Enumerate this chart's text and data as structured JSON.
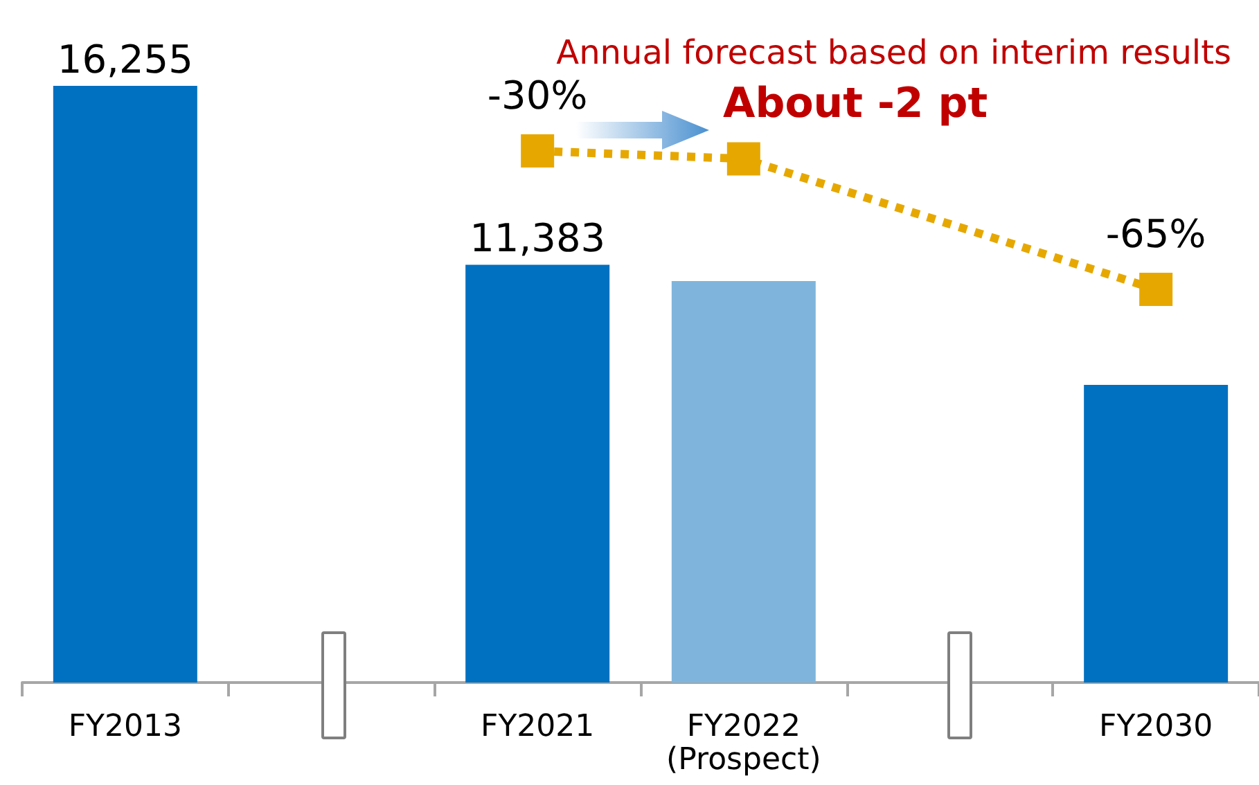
{
  "chart_data": {
    "type": "bar",
    "categories": [
      "FY2013",
      null,
      "FY2021",
      "FY2022\n(Prospect)",
      null,
      "FY2030"
    ],
    "series": [
      {
        "values": [
          16255,
          null,
          11383,
          10940,
          null,
          8110
        ],
        "colors": [
          "#0070c0",
          "#0070c0",
          "#0070c0",
          "#7fb5dc",
          "#0070c0",
          "#0070c0"
        ],
        "value_labels": [
          "16,255",
          null,
          "11,383",
          null,
          null,
          null
        ]
      },
      {
        "type": "line",
        "axis": "y2",
        "color": "#e6a800",
        "values": [
          null,
          null,
          -30,
          -32,
          null,
          -65
        ],
        "value_labels": [
          null,
          null,
          "-30%",
          null,
          null,
          "-65%"
        ],
        "marker": "square",
        "line_style": "dotted"
      }
    ],
    "annotations": [
      "Annual forecast based on interim results",
      "About -2 pt"
    ],
    "grid": false
  }
}
